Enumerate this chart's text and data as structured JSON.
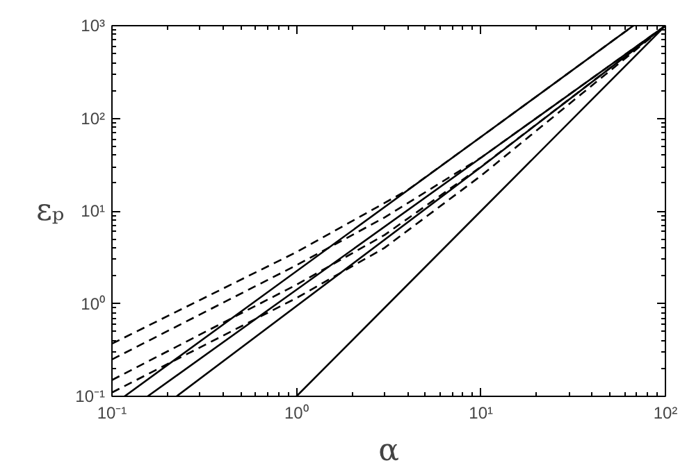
{
  "chart_data": {
    "type": "line",
    "xlabel": "α",
    "ylabel": "εₚ",
    "log": "xy",
    "grid": false,
    "marker": "none",
    "xlim": [
      0.1,
      100
    ],
    "ylim": [
      0.1,
      1000
    ],
    "xticks": [
      {
        "value": 0.1,
        "label": "10⁻¹"
      },
      {
        "value": 1,
        "label": "10⁰"
      },
      {
        "value": 10,
        "label": "10¹"
      },
      {
        "value": 100,
        "label": "10²"
      }
    ],
    "yticks": [
      {
        "value": 0.1,
        "label": "10⁻¹"
      },
      {
        "value": 1,
        "label": "10⁰"
      },
      {
        "value": 10,
        "label": "10¹"
      },
      {
        "value": 100,
        "label": "10²"
      },
      {
        "value": 1000,
        "label": "10³"
      }
    ],
    "series": [
      {
        "color": "#000000",
        "line_style": "solid",
        "x": [
          0.117,
          10,
          67
        ],
        "values": [
          0.1,
          63,
          1000
        ]
      },
      {
        "color": "#000000",
        "line_style": "solid",
        "x": [
          0.156,
          10,
          100
        ],
        "values": [
          0.1,
          37.6,
          1000
        ]
      },
      {
        "color": "#000000",
        "line_style": "solid",
        "x": [
          0.224,
          10,
          100
        ],
        "values": [
          0.1,
          29.8,
          1000
        ]
      },
      {
        "color": "#000000",
        "line_style": "solid",
        "x": [
          1,
          10,
          100
        ],
        "values": [
          0.1,
          10,
          1000
        ]
      },
      {
        "color": "#000000",
        "line_style": "dashed",
        "x": [
          0.1,
          1,
          4,
          10,
          67
        ],
        "values": [
          0.37,
          3.6,
          16.8,
          63,
          1000
        ]
      },
      {
        "color": "#000000",
        "line_style": "dashed",
        "x": [
          0.1,
          1,
          3,
          10,
          100
        ],
        "values": [
          0.25,
          2.6,
          8.5,
          37.6,
          1000
        ]
      },
      {
        "color": "#000000",
        "line_style": "dashed",
        "x": [
          0.1,
          1,
          3,
          10,
          100
        ],
        "values": [
          0.15,
          1.6,
          5.5,
          30,
          1000
        ]
      },
      {
        "color": "#000000",
        "line_style": "dashed",
        "x": [
          0.1,
          1,
          3,
          10,
          100
        ],
        "values": [
          0.11,
          1.15,
          4,
          24,
          1000
        ]
      }
    ]
  }
}
